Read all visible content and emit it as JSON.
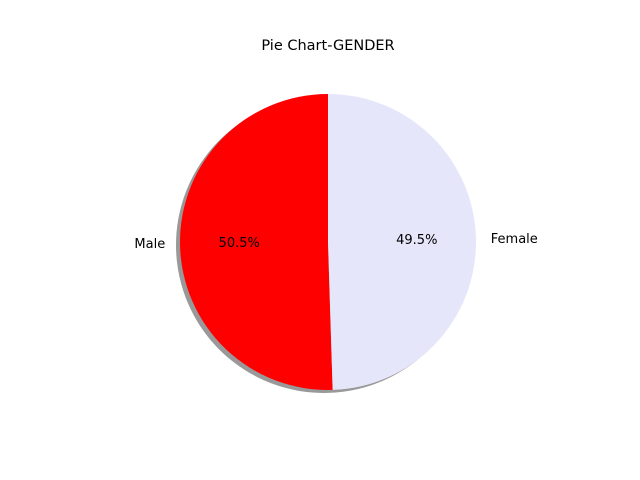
{
  "chart_data": {
    "type": "pie",
    "title": "Pie Chart-GENDER",
    "slices": [
      {
        "label": "Male",
        "value": 50.5,
        "pct_label": "50.5%",
        "color": "#ff0000"
      },
      {
        "label": "Female",
        "value": 49.5,
        "pct_label": "49.5%",
        "color": "#e6e6fa"
      }
    ],
    "start_angle_deg": 90,
    "counterclockwise": true,
    "shadow": true,
    "legend": "none"
  }
}
